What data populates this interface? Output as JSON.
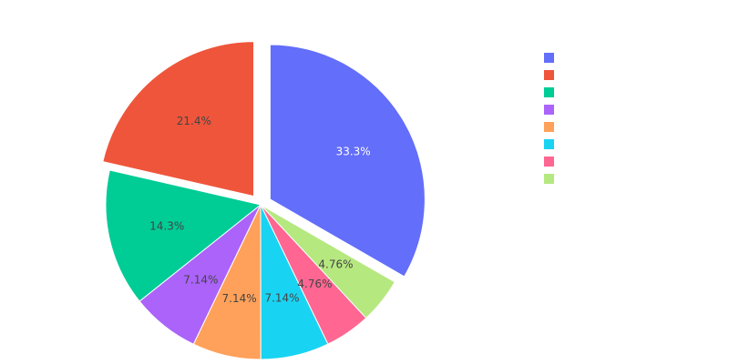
{
  "chart_data": {
    "type": "pie",
    "title": "",
    "slices": [
      {
        "label": "33.3%",
        "value": 33.3,
        "color": "#636efa",
        "label_color": "#ffffff",
        "pulled": true
      },
      {
        "label": "4.76%",
        "value": 4.76,
        "color": "#b6e880",
        "label_color": "#444444",
        "pulled": false
      },
      {
        "label": "4.76%",
        "value": 4.76,
        "color": "#ff6692",
        "label_color": "#444444",
        "pulled": false
      },
      {
        "label": "7.14%",
        "value": 7.14,
        "color": "#19d3f3",
        "label_color": "#444444",
        "pulled": false
      },
      {
        "label": "7.14%",
        "value": 7.14,
        "color": "#ffa15a",
        "label_color": "#444444",
        "pulled": false
      },
      {
        "label": "7.14%",
        "value": 7.14,
        "color": "#ab63fa",
        "label_color": "#444444",
        "pulled": false
      },
      {
        "label": "14.3%",
        "value": 14.3,
        "color": "#00cc96",
        "label_color": "#444444",
        "pulled": false
      },
      {
        "label": "21.4%",
        "value": 21.4,
        "color": "#ef553b",
        "label_color": "#444444",
        "pulled": true
      }
    ],
    "legend": {
      "placement": "top-right",
      "items": [
        {
          "color": "#636efa"
        },
        {
          "color": "#ef553b"
        },
        {
          "color": "#00cc96"
        },
        {
          "color": "#ab63fa"
        },
        {
          "color": "#ffa15a"
        },
        {
          "color": "#19d3f3"
        },
        {
          "color": "#ff6692"
        },
        {
          "color": "#b6e880"
        }
      ]
    }
  }
}
